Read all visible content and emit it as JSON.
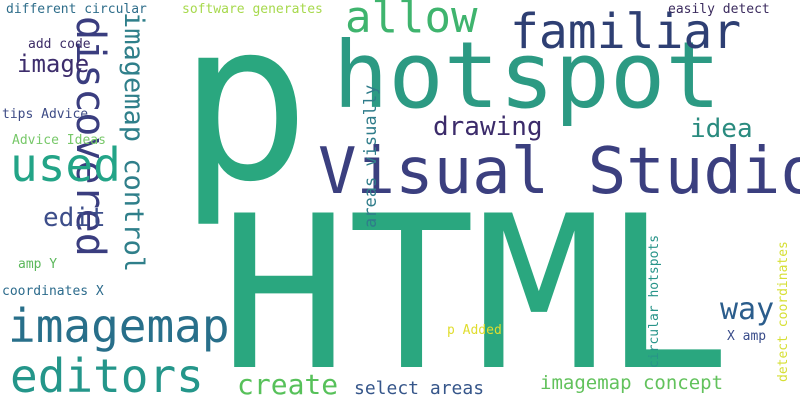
{
  "word_cloud": {
    "background": "#ffffff",
    "words": [
      {
        "text": "p",
        "color": "#2aa77f"
      },
      {
        "text": "HTML",
        "color": "#2aa77f"
      },
      {
        "text": "hotspot",
        "color": "#2c9a83"
      },
      {
        "text": "Visual Studio",
        "color": "#3b3f7f"
      },
      {
        "text": "familiar",
        "color": "#2e3f73"
      },
      {
        "text": "allow",
        "color": "#3fb46e"
      },
      {
        "text": "discovered",
        "color": "#3a3d7f"
      },
      {
        "text": "imagemap control",
        "color": "#2f7f8a"
      },
      {
        "text": "used",
        "color": "#23a487"
      },
      {
        "text": "drawing",
        "color": "#3b2b6a"
      },
      {
        "text": "idea",
        "color": "#2a8b7f"
      },
      {
        "text": "image",
        "color": "#3d2d6c"
      },
      {
        "text": "edit",
        "color": "#3d4e8a"
      },
      {
        "text": "imagemap",
        "color": "#286f8a"
      },
      {
        "text": "editors",
        "color": "#24968a"
      },
      {
        "text": "create",
        "color": "#57c15a"
      },
      {
        "text": "way",
        "color": "#2b5d8c"
      },
      {
        "text": "imagemap concept",
        "color": "#62c25c"
      },
      {
        "text": "areas visually",
        "color": "#2f7c8a"
      },
      {
        "text": "select areas",
        "color": "#36568a"
      },
      {
        "text": "different circular",
        "color": "#2e6d8a"
      },
      {
        "text": "software generates",
        "color": "#a7d94d"
      },
      {
        "text": "easily detect",
        "color": "#3b2b5e"
      },
      {
        "text": "add code",
        "color": "#3d2d67"
      },
      {
        "text": "tips Advice",
        "color": "#3e4c86"
      },
      {
        "text": "Advice Ideas",
        "color": "#77c869"
      },
      {
        "text": "amp Y",
        "color": "#5cb85c"
      },
      {
        "text": "coordinates X",
        "color": "#2c6b8c"
      },
      {
        "text": "p Added",
        "color": "#e0dd2e"
      },
      {
        "text": "circular hotspots",
        "color": "#289489"
      },
      {
        "text": "X amp",
        "color": "#3a4d8a"
      },
      {
        "text": "detect coordinates",
        "color": "#d6df34"
      }
    ]
  }
}
